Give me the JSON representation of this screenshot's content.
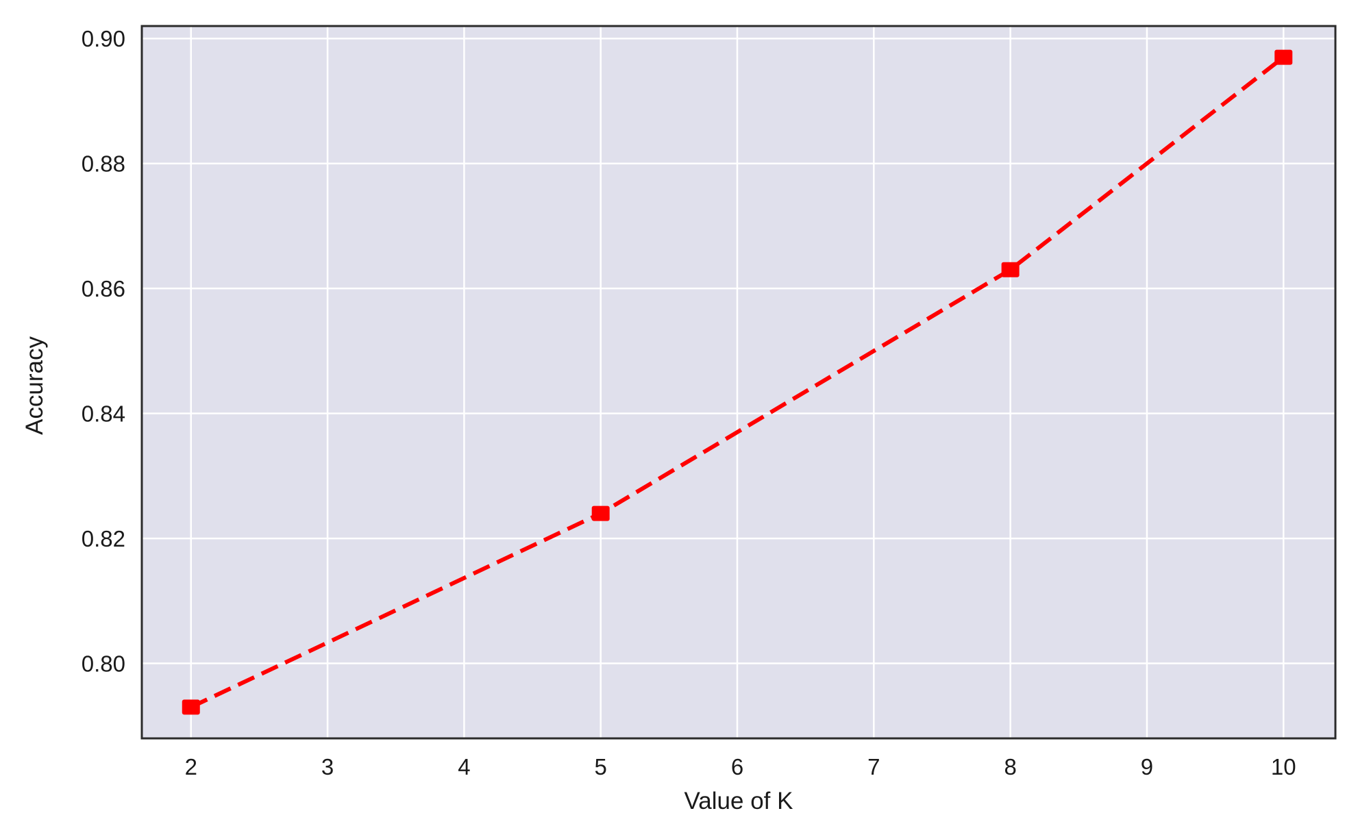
{
  "chart_data": {
    "type": "line",
    "xlabel": "Value of K",
    "ylabel": "Accuracy",
    "x_ticks": [
      "2",
      "3",
      "4",
      "5",
      "6",
      "7",
      "8",
      "9",
      "10"
    ],
    "y_ticks": [
      "0.80",
      "0.82",
      "0.84",
      "0.86",
      "0.88",
      "0.90"
    ],
    "xlim": [
      1.64,
      10.38
    ],
    "ylim": [
      0.788,
      0.902
    ],
    "grid": true,
    "series": [
      {
        "x": [
          2,
          5,
          8,
          10
        ],
        "values": [
          0.793,
          0.824,
          0.863,
          0.897
        ]
      }
    ],
    "colors": {
      "plot_background": "#e0e0ec",
      "grid": "#ffffff",
      "line": "#ff0000",
      "marker": "#ff0000",
      "frame": "#2b2b2b"
    },
    "line_style": "dashed",
    "marker": "square"
  }
}
